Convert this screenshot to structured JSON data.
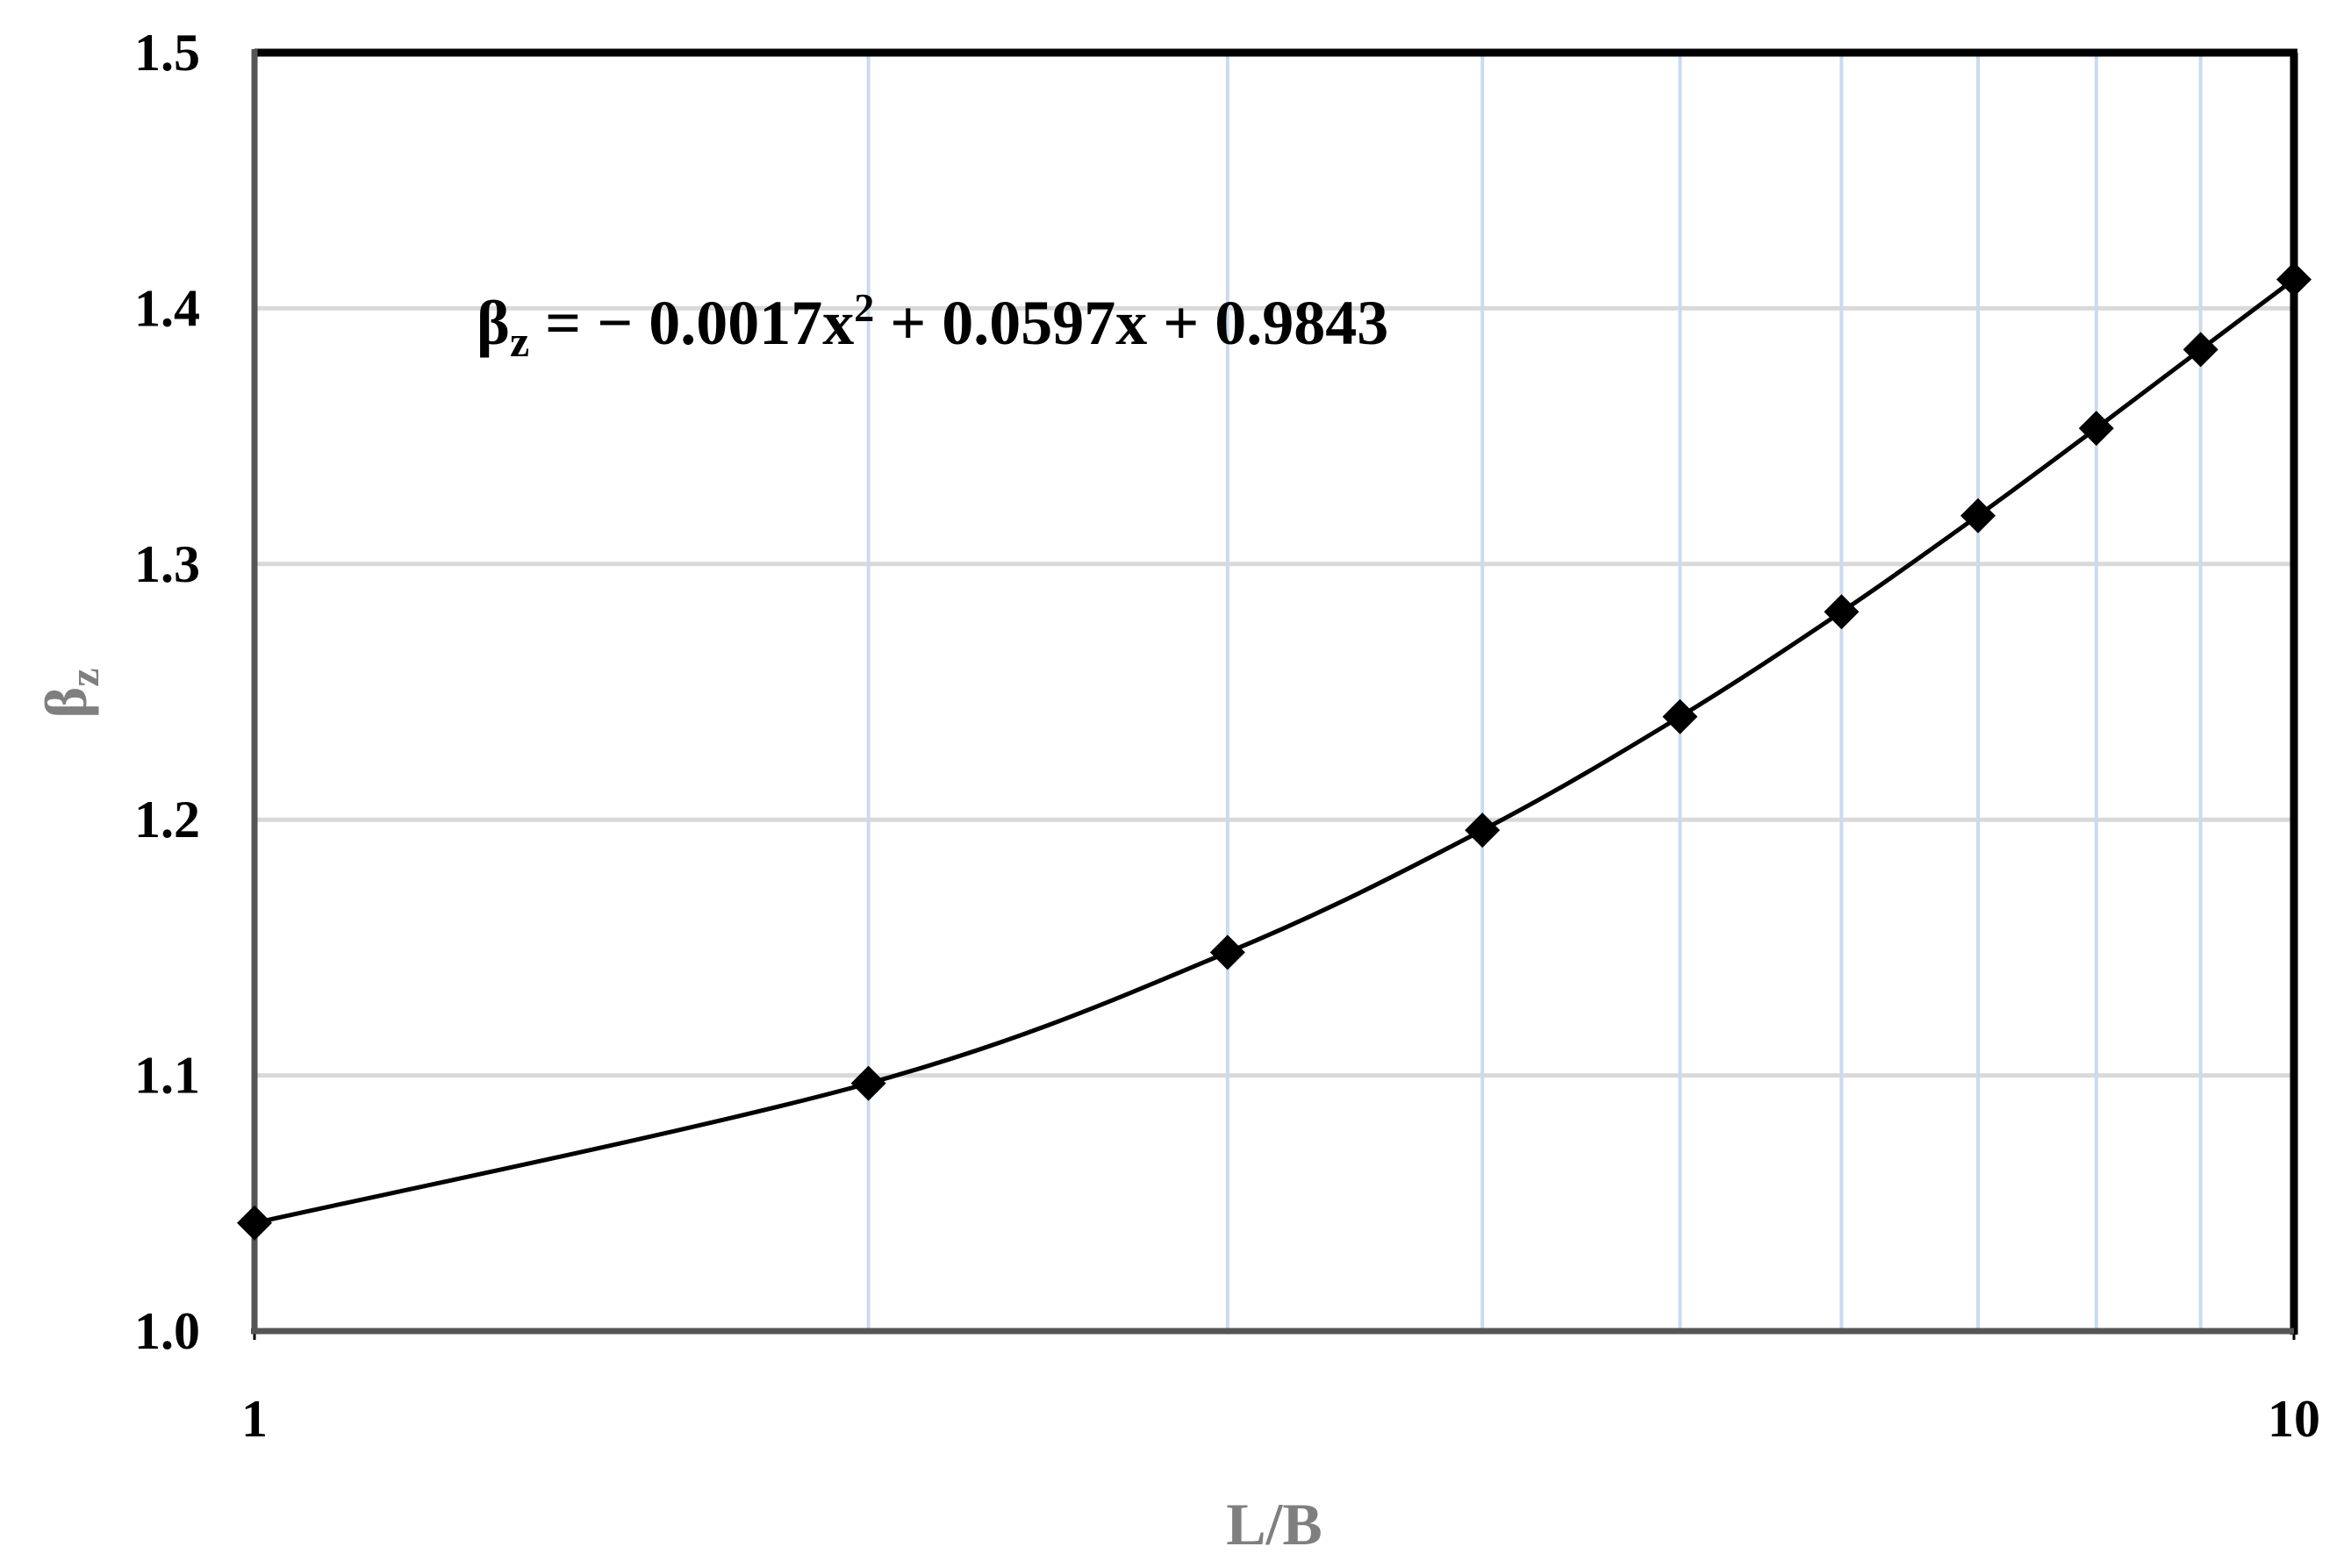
{
  "chart_data": {
    "type": "line",
    "x_label": "L/B",
    "y_label": [
      "β",
      "z"
    ],
    "annotation": [
      "β",
      "z",
      " = − 0.0017x",
      "2",
      " + 0.0597x + 0.9843"
    ],
    "x": [
      1,
      2,
      3,
      4,
      5,
      6,
      7,
      8,
      9,
      10
    ],
    "series": [
      {
        "color": "#000000",
        "marker": "diamond",
        "smooth": true,
        "values": [
          1.0423,
          1.0969,
          1.1481,
          1.1959,
          1.2403,
          1.2813,
          1.3189,
          1.3531,
          1.3839,
          1.4113
        ]
      }
    ],
    "xscale": "log",
    "xlim": [
      1,
      10
    ],
    "xticks": [
      1,
      10
    ],
    "xminorticks": [
      2,
      3,
      4,
      5,
      6,
      7,
      8,
      9
    ],
    "ylim": [
      1.0,
      1.5
    ],
    "yticks": [
      {
        "value": 1.0,
        "label": "1.0"
      },
      1.1,
      1.2,
      1.3,
      1.4,
      1.5
    ],
    "grid": true
  }
}
